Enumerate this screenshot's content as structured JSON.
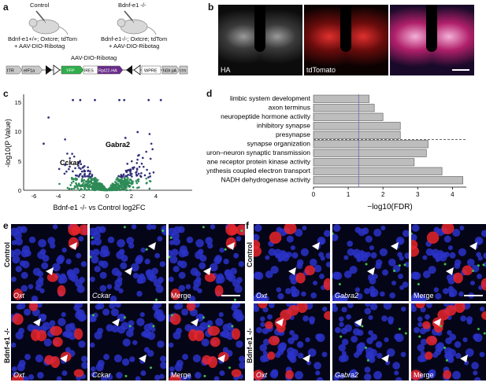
{
  "panel_labels": {
    "a": "a",
    "b": "b",
    "c": "c",
    "d": "d",
    "e": "e",
    "f": "f"
  },
  "panel_a": {
    "control_title": "Control",
    "bdnf_title": "Bdnf-e1 -/-",
    "control_geno": "Bdnf-e1+/+; Oxtcre; tdTom",
    "control_virus": "+ AAV-DIO-Ribotag",
    "ko_geno": "Bdnf-e1-/-; Oxtcre; tdTom",
    "ko_virus": "+ AAV-DIO-Ribotag",
    "construct_title": "AAV-DIO-Ribotag",
    "construct_parts": [
      "ITR",
      "eIF1a",
      "YFP",
      "IRES",
      "Rpl22-HA",
      "WPRE",
      "hGh pA",
      "ITR"
    ]
  },
  "panel_b": {
    "labels": [
      "HA",
      "tdTomato",
      ""
    ]
  },
  "panel_c": {
    "xlabel": "Bdnf-e1 -/- vs Control log2FC",
    "ylabel": "-log10(P Value)",
    "xticks": [
      "-6",
      "-4",
      "-2",
      "0",
      "2",
      "4"
    ],
    "yticks": [
      "0",
      "5",
      "10",
      "15"
    ],
    "annotations": [
      "Gabra2",
      "Cckar"
    ]
  },
  "chart_data": {
    "type": "bar",
    "categories": [
      "limbic system development",
      "axon terminus",
      "neuropeptide hormone activity",
      "inhibitory synapse",
      "presynapse",
      "synapse organization",
      "neuron–neuron synaptic transmission",
      "transmembrane receptor protein kinase activity",
      "ATP synthesis coupled electron transport",
      "NADH dehydrogenase activity"
    ],
    "values": [
      1.6,
      1.75,
      2.0,
      2.5,
      2.5,
      3.3,
      3.25,
      2.9,
      3.7,
      4.3
    ],
    "xlabel": "−log10(FDR)",
    "xticks": [
      "0",
      "1",
      "2",
      "3",
      "4"
    ],
    "xlim": [
      0,
      4.4
    ],
    "threshold": 1.3
  },
  "panel_e": {
    "row_labels": [
      "Control",
      "Bdnf-e1 -/-"
    ],
    "col_labels": [
      "Oxt",
      "Cckar",
      "Merge"
    ]
  },
  "panel_f": {
    "row_labels": [
      "Control",
      "Bdnf-e1 -/-"
    ],
    "col_labels": [
      "Oxt",
      "Gabra2",
      "Merge"
    ]
  },
  "colors": {
    "bar": "#bdbdbd",
    "dots_sig": "#2f2f7a",
    "dots_ns": "#2e8b57",
    "oxt": "#e8262b",
    "nuclei": "#2a32c8",
    "green": "#3cc24a"
  }
}
